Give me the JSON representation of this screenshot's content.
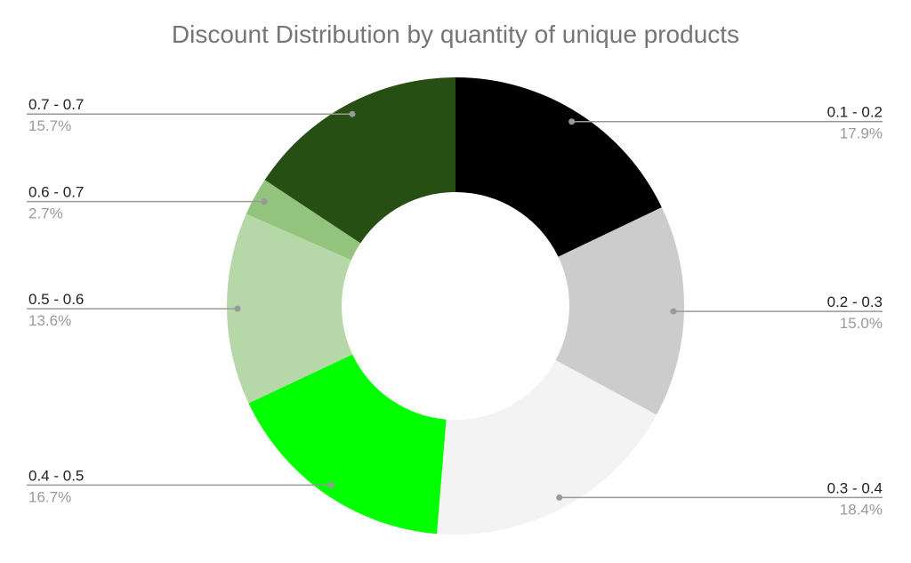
{
  "chart_data": {
    "type": "donut",
    "title": "Discount Distribution by quantity of unique products",
    "categories": [
      "0.1 - 0.2",
      "0.2 - 0.3",
      "0.3 - 0.4",
      "0.4 - 0.5",
      "0.5 - 0.6",
      "0.6 - 0.7",
      "0.7 - 0.7"
    ],
    "values": [
      17.9,
      15.0,
      18.4,
      16.7,
      13.6,
      2.7,
      15.7
    ],
    "value_labels": [
      "17.9%",
      "15.0%",
      "18.4%",
      "16.7%",
      "13.6%",
      "2.7%",
      "15.7%"
    ],
    "colors": [
      "#000000",
      "#cccccc",
      "#f3f3f3",
      "#00ff00",
      "#b6d7a8",
      "#93c47d",
      "#274e13"
    ]
  }
}
